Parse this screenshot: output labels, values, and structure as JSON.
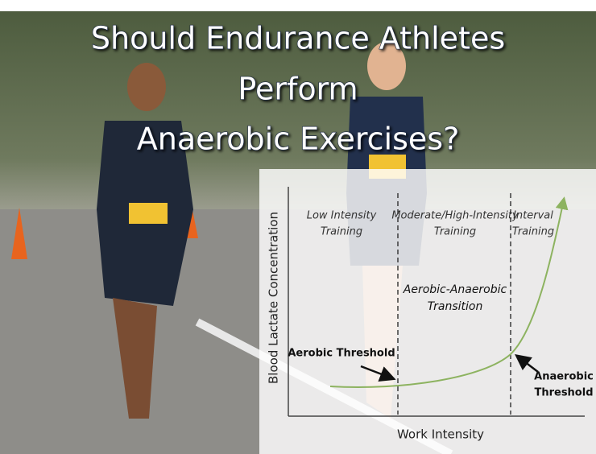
{
  "header": {
    "title_lines": [
      "Should Endurance Athletes",
      "Perform",
      "Anaerobic Exercises?"
    ]
  },
  "diagram": {
    "y_axis_label": "Blood Lactate Concentration",
    "x_axis_label": "Work Intensity",
    "zones": [
      {
        "lines": [
          "Low Intensity",
          "Training"
        ]
      },
      {
        "lines": [
          "Moderate/High-Intensity",
          "Training"
        ]
      },
      {
        "lines": [
          "Interval",
          "Training"
        ]
      }
    ],
    "transition_lines": [
      "Aerobic-Anaerobic",
      "Transition"
    ],
    "aerobic_threshold": "Aerobic Threshold",
    "anaerobic_threshold_lines": [
      "Anaerobic",
      "Threshold"
    ]
  }
}
